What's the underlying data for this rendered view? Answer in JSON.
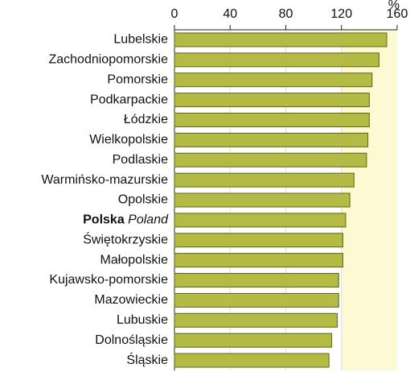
{
  "chart_data": {
    "type": "bar",
    "orientation": "horizontal",
    "xlabel": "%",
    "categories": [
      "Lubelskie",
      "Zachodniopomorskie",
      "Pomorskie",
      "Podkarpackie",
      "Łódzkie",
      "Wielkopolskie",
      "Podlaskie",
      "Warmińsko-mazurskie",
      "Opolskie",
      {
        "label": "Polska",
        "translation": "Poland"
      },
      "Świętokrzyskie",
      "Małopolskie",
      "Kujawsko-pomorskie",
      "Mazowieckie",
      "Lubuskie",
      "Dolnośląskie",
      "Śląskie"
    ],
    "values": [
      152.5,
      147,
      142,
      140,
      140,
      139,
      138,
      129,
      126,
      123,
      121,
      121,
      118,
      118,
      117,
      113,
      111
    ],
    "color": "#b3bb45",
    "xlim": [
      0,
      160
    ],
    "xticks": [
      0,
      40,
      80,
      120,
      160
    ],
    "grid": true
  }
}
